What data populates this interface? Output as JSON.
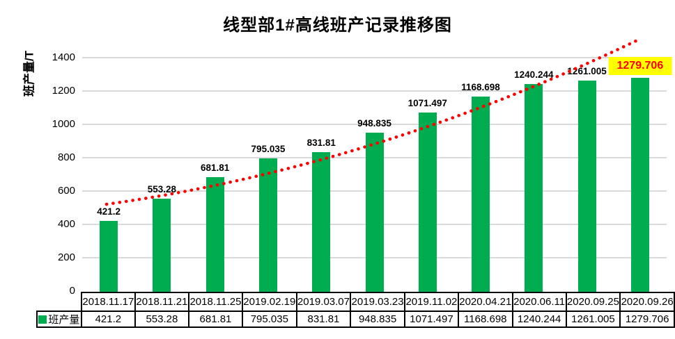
{
  "title": "线型部1#高线班产记录推移图",
  "y_axis": {
    "label": "班产量/T"
  },
  "legend": {
    "series_label": "班产量"
  },
  "colors": {
    "bar": "#00AC50",
    "trendline": "#FF0000",
    "highlight_bg": "#FFFF00",
    "highlight_text": "#FF0000",
    "gridline": "#d9d9d9"
  },
  "chart_data": {
    "type": "bar",
    "title": "线型部1#高线班产记录推移图",
    "xlabel": "",
    "ylabel": "班产量/T",
    "categories": [
      "2018.11.17",
      "2018.11.21",
      "2018.11.25",
      "2019.02.19",
      "2019.03.07",
      "2019.03.23",
      "2019.11.02",
      "2020.04.21",
      "2020.06.11",
      "2020.09.25",
      "2020.09.26"
    ],
    "series": [
      {
        "name": "班产量",
        "values": [
          421.2,
          553.28,
          681.81,
          795.035,
          831.81,
          948.835,
          1071.497,
          1168.698,
          1240.244,
          1261.005,
          1279.706
        ]
      }
    ],
    "ylim": [
      0,
      1400
    ],
    "yticks": [
      0,
      200,
      400,
      600,
      800,
      1000,
      1200,
      1400
    ],
    "grid": true,
    "legend_position": "data-table-left",
    "data_labels": true,
    "highlight_last_index": 10,
    "trendline": {
      "style": "dotted",
      "color": "#FF0000",
      "shape": "exponential"
    },
    "data_table": true
  }
}
